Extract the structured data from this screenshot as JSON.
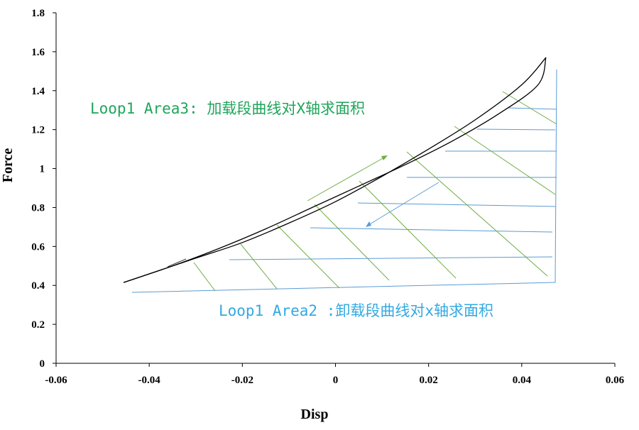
{
  "chart_data": {
    "type": "line",
    "xlabel": "Disp",
    "ylabel": "Force",
    "xlim": [
      -0.06,
      0.06
    ],
    "ylim": [
      0,
      1.8
    ],
    "x_ticks": [
      "-0.06",
      "-0.04",
      "-0.02",
      "0",
      "0.02",
      "0.04",
      "0.06"
    ],
    "y_ticks": [
      "0",
      "0.2",
      "0.4",
      "0.6",
      "0.8",
      "1",
      "1.2",
      "1.4",
      "1.6",
      "1.8"
    ],
    "grid": false,
    "legend": "none",
    "series": [
      {
        "segment": "loading",
        "color": "#000000",
        "points": [
          [
            -0.0455,
            0.415
          ],
          [
            -0.035,
            0.5
          ],
          [
            -0.025,
            0.59
          ],
          [
            -0.015,
            0.69
          ],
          [
            -0.005,
            0.8
          ],
          [
            0.005,
            0.91
          ],
          [
            0.015,
            1.02
          ],
          [
            0.025,
            1.14
          ],
          [
            0.035,
            1.28
          ],
          [
            0.0435,
            1.43
          ],
          [
            0.0452,
            1.57
          ]
        ]
      },
      {
        "segment": "unloading",
        "color": "#000000",
        "points": [
          [
            0.0452,
            1.57
          ],
          [
            0.04,
            1.43
          ],
          [
            0.03,
            1.25
          ],
          [
            0.02,
            1.1
          ],
          [
            0.01,
            0.96
          ],
          [
            0.0,
            0.83
          ],
          [
            -0.01,
            0.72
          ],
          [
            -0.02,
            0.62
          ],
          [
            -0.03,
            0.54
          ],
          [
            -0.0455,
            0.415
          ]
        ]
      }
    ],
    "annotations": [
      {
        "text": "Loop1 Area3: 加载段曲线对X轴求面积",
        "color": "#1fa55a",
        "points_to": "loading"
      },
      {
        "text": "Loop1 Area2 :卸载段曲线对x轴求面积",
        "color": "#33a9e0",
        "points_to": "unloading"
      }
    ],
    "colors": {
      "hatch_green": "#70ad47",
      "hatch_blue": "#5b9bd5",
      "curve": "#000000"
    }
  }
}
